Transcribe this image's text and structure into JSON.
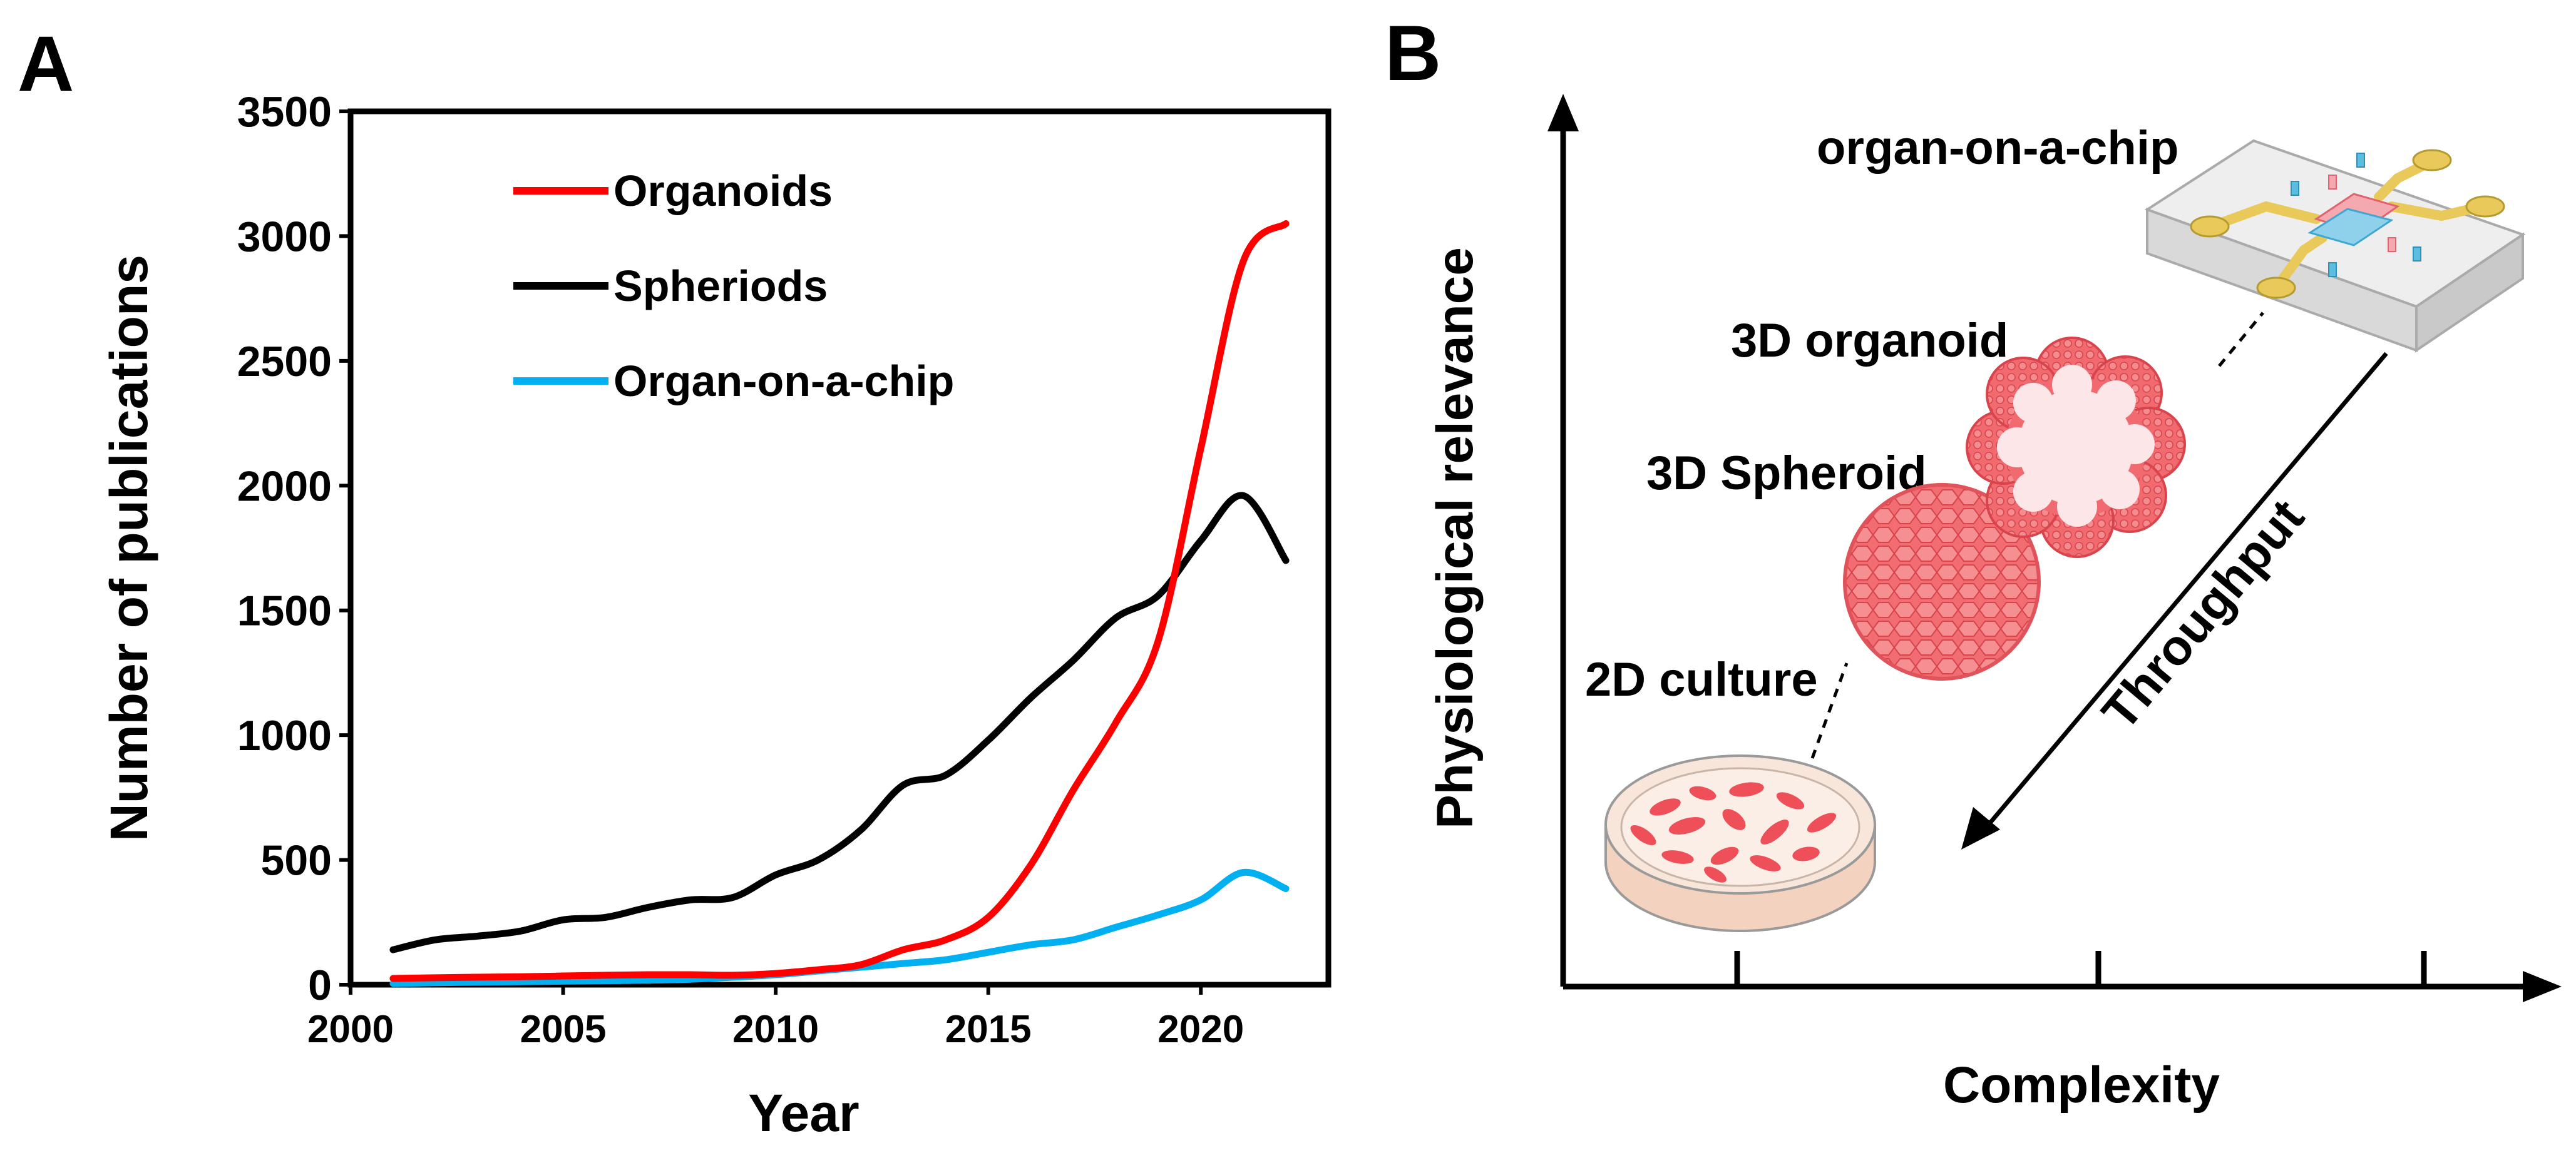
{
  "panels": {
    "a_label": "A",
    "b_label": "B"
  },
  "chart_data": {
    "type": "line",
    "xlabel": "Year",
    "ylabel": "Number of publications",
    "xlim": [
      2000,
      2023
    ],
    "ylim": [
      0,
      3500
    ],
    "xticks": [
      2000,
      2005,
      2010,
      2015,
      2020
    ],
    "yticks": [
      0,
      500,
      1000,
      1500,
      2000,
      2500,
      3000,
      3500
    ],
    "legend_position": "top-left",
    "grid": false,
    "x": [
      2001,
      2002,
      2003,
      2004,
      2005,
      2006,
      2007,
      2008,
      2009,
      2010,
      2011,
      2012,
      2013,
      2014,
      2015,
      2016,
      2017,
      2018,
      2019,
      2020,
      2021,
      2022
    ],
    "series": [
      {
        "name": "Organoids",
        "color": "#ff0000",
        "values": [
          25,
          28,
          30,
          32,
          35,
          38,
          40,
          40,
          38,
          45,
          60,
          80,
          140,
          180,
          270,
          480,
          780,
          1050,
          1380,
          2150,
          2900,
          3050
        ]
      },
      {
        "name": "Spheriods",
        "color": "#000000",
        "values": [
          140,
          180,
          195,
          215,
          260,
          270,
          310,
          340,
          350,
          440,
          500,
          620,
          800,
          840,
          980,
          1150,
          1300,
          1470,
          1560,
          1780,
          1960,
          1700
        ]
      },
      {
        "name": "Organ-on-a-chip",
        "color": "#00b0f0",
        "values": [
          5,
          8,
          10,
          12,
          14,
          16,
          18,
          22,
          30,
          40,
          55,
          70,
          85,
          100,
          130,
          160,
          180,
          230,
          280,
          340,
          450,
          385
        ]
      }
    ]
  },
  "diagram": {
    "x_axis_label": "Complexity",
    "y_axis_label": "Physiological relevance",
    "arrow_label": "Throughput",
    "stages": [
      {
        "label": "2D culture",
        "icon": "petri-dish-icon"
      },
      {
        "label": "3D Spheroid",
        "icon": "spheroid-icon"
      },
      {
        "label": "3D organoid",
        "icon": "organoid-icon"
      },
      {
        "label": "organ-on-a-chip",
        "icon": "chip-icon"
      }
    ],
    "colors": {
      "cell": "#f0606a",
      "cell_light": "#fbd3d5",
      "dish": "#f7e3d3",
      "channel_blue": "#5bbde0",
      "chip_gold": "#e8c95a"
    }
  }
}
